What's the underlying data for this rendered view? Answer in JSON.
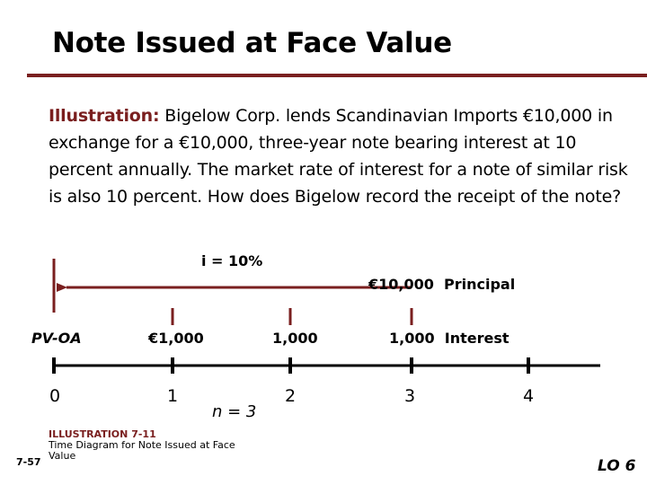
{
  "slide": {
    "title": "Note Issued at Face Value",
    "illustration_lead": "Illustration:",
    "illustration_text": "Bigelow Corp. lends Scandinavian Imports €10,000 in exchange for a €10,000, three-year note bearing interest at 10 percent annually. The market rate of interest for a note of similar risk is also 10 percent. How does Bigelow record the receipt of the note?",
    "accent_color": "#7a1f1f"
  },
  "diagram": {
    "rate_label": "i = 10%",
    "principal_label": "€10,000  Principal",
    "pv_label": "PV-OA",
    "interest_values": [
      "€1,000",
      "1,000",
      "1,000  Interest"
    ],
    "periods": [
      "0",
      "1",
      "2",
      "3",
      "4"
    ],
    "n_label": "n = 3"
  },
  "caption": {
    "heading": "ILLUSTRATION 7-11",
    "text": "Time Diagram for Note Issued at Face Value"
  },
  "footer": {
    "page_number": "7-57",
    "learning_objective": "LO 6"
  }
}
